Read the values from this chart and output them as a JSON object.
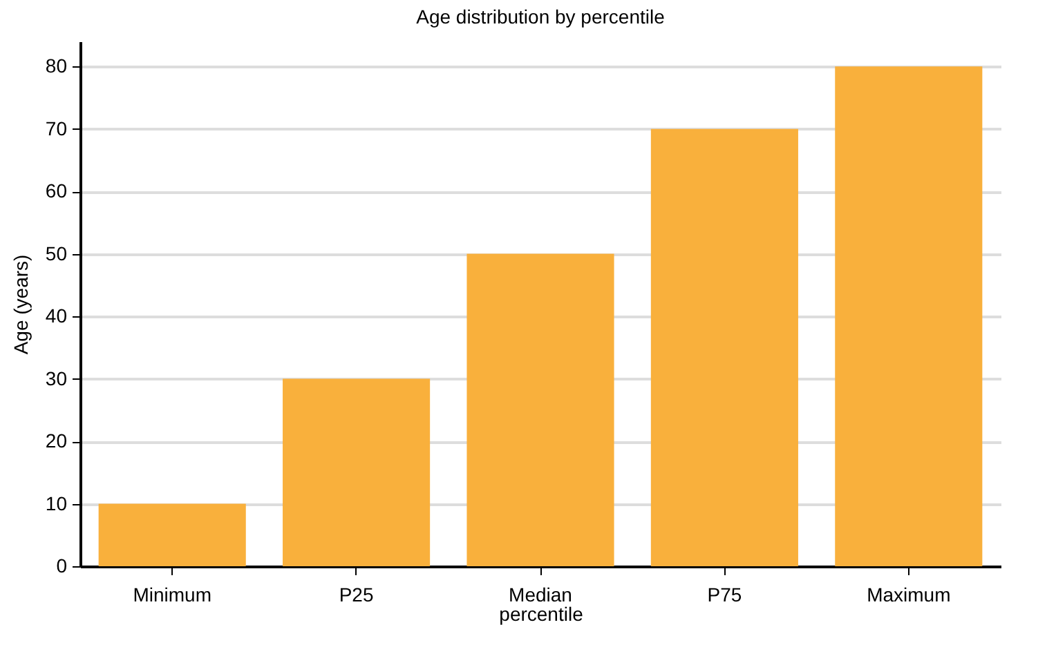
{
  "chart_data": {
    "type": "bar",
    "title": "Age distribution by percentile",
    "xlabel": "percentile",
    "ylabel": "Age (years)",
    "categories": [
      "Minimum",
      "P25",
      "Median",
      "P75",
      "Maximum"
    ],
    "values": [
      10,
      30,
      50,
      70,
      80
    ],
    "color": "#f9b03c",
    "ylim": [
      0,
      84
    ],
    "yticks": [
      0,
      10,
      20,
      30,
      40,
      50,
      60,
      70,
      80
    ],
    "grid": "y"
  }
}
